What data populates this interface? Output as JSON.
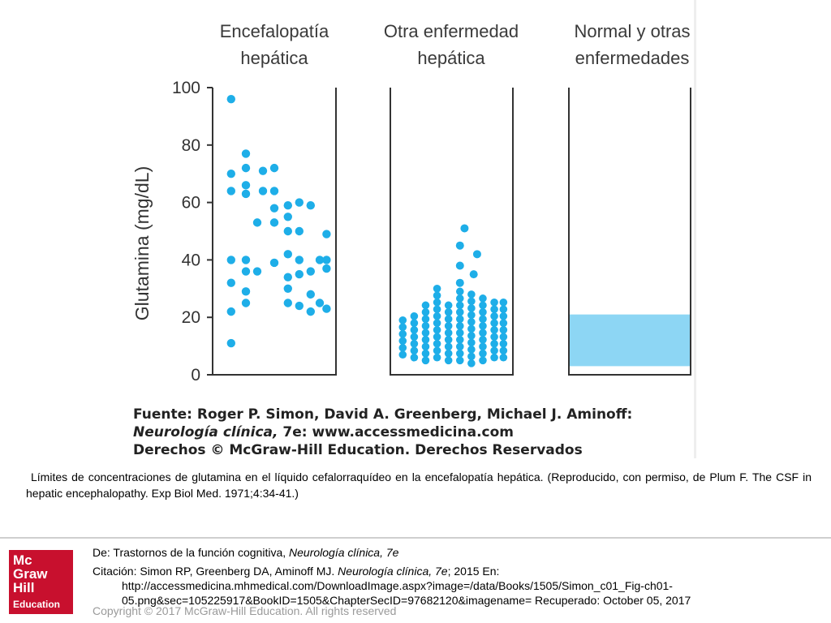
{
  "chart_data": {
    "type": "scatter",
    "ylabel": "Glutamina (mg/dL)",
    "ylim": [
      0,
      100
    ],
    "yticks": [
      0,
      20,
      40,
      60,
      80,
      100
    ],
    "colors": {
      "points": "#1eaee8",
      "band": "#8dd6f4",
      "axis": "#333333"
    },
    "panels": [
      {
        "title": [
          "Encefalopatía",
          "hepática"
        ],
        "points": [
          {
            "x": 0.12,
            "y": 96
          },
          {
            "x": 0.12,
            "y": 70
          },
          {
            "x": 0.25,
            "y": 72
          },
          {
            "x": 0.4,
            "y": 71
          },
          {
            "x": 0.5,
            "y": 72
          },
          {
            "x": 0.25,
            "y": 77
          },
          {
            "x": 0.12,
            "y": 64
          },
          {
            "x": 0.25,
            "y": 66
          },
          {
            "x": 0.25,
            "y": 63
          },
          {
            "x": 0.4,
            "y": 64
          },
          {
            "x": 0.5,
            "y": 64
          },
          {
            "x": 0.35,
            "y": 53
          },
          {
            "x": 0.5,
            "y": 53
          },
          {
            "x": 0.5,
            "y": 58
          },
          {
            "x": 0.62,
            "y": 59
          },
          {
            "x": 0.62,
            "y": 55
          },
          {
            "x": 0.62,
            "y": 50
          },
          {
            "x": 0.72,
            "y": 60
          },
          {
            "x": 0.82,
            "y": 59
          },
          {
            "x": 0.72,
            "y": 50
          },
          {
            "x": 0.96,
            "y": 49
          },
          {
            "x": 0.12,
            "y": 40
          },
          {
            "x": 0.25,
            "y": 40
          },
          {
            "x": 0.25,
            "y": 36
          },
          {
            "x": 0.35,
            "y": 36
          },
          {
            "x": 0.5,
            "y": 39
          },
          {
            "x": 0.62,
            "y": 42
          },
          {
            "x": 0.72,
            "y": 40
          },
          {
            "x": 0.62,
            "y": 34
          },
          {
            "x": 0.72,
            "y": 35
          },
          {
            "x": 0.82,
            "y": 36
          },
          {
            "x": 0.9,
            "y": 40
          },
          {
            "x": 0.96,
            "y": 37
          },
          {
            "x": 0.96,
            "y": 40
          },
          {
            "x": 0.12,
            "y": 32
          },
          {
            "x": 0.25,
            "y": 29
          },
          {
            "x": 0.62,
            "y": 30
          },
          {
            "x": 0.72,
            "y": 24
          },
          {
            "x": 0.62,
            "y": 25
          },
          {
            "x": 0.82,
            "y": 28
          },
          {
            "x": 0.9,
            "y": 25
          },
          {
            "x": 0.82,
            "y": 22
          },
          {
            "x": 0.96,
            "y": 23
          },
          {
            "x": 0.25,
            "y": 25
          },
          {
            "x": 0.12,
            "y": 22
          },
          {
            "x": 0.12,
            "y": 11
          }
        ]
      },
      {
        "title": [
          "Otra enfermedad",
          "hepática"
        ],
        "columns": [
          {
            "x": 0.08,
            "min": 7,
            "max": 19
          },
          {
            "x": 0.18,
            "min": 6,
            "max": 22
          },
          {
            "x": 0.28,
            "min": 5,
            "max": 25
          },
          {
            "x": 0.38,
            "min": 6,
            "max": 31
          },
          {
            "x": 0.48,
            "min": 5,
            "max": 25
          },
          {
            "x": 0.58,
            "min": 5,
            "max": 29
          },
          {
            "x": 0.68,
            "min": 4,
            "max": 30
          },
          {
            "x": 0.78,
            "min": 5,
            "max": 28
          },
          {
            "x": 0.88,
            "min": 6,
            "max": 27
          },
          {
            "x": 0.96,
            "min": 6,
            "max": 27
          }
        ],
        "outliers": [
          {
            "x": 0.62,
            "y": 51
          },
          {
            "x": 0.58,
            "y": 45
          },
          {
            "x": 0.73,
            "y": 42
          },
          {
            "x": 0.58,
            "y": 38
          },
          {
            "x": 0.7,
            "y": 35
          },
          {
            "x": 0.58,
            "y": 32
          }
        ]
      },
      {
        "title": [
          "Normal y otras",
          "enfermedades"
        ],
        "band": {
          "min": 3,
          "max": 21
        }
      }
    ]
  },
  "source": {
    "label": "Fuente:",
    "authors": "Roger P. Simon, David A. Greenberg, Michael J. Aminoff:",
    "book_italic": "Neurología clínica,",
    "book_rest": " 7e: www.accessmedicina.com",
    "rights": "Derechos © McGraw-Hill Education. Derechos Reservados"
  },
  "caption": "Límites de concentraciones de glutamina en el líquido cefalorraquídeo en la encefalopatía hepática. (Reproducido, con permiso, de Plum F. The CSF in hepatic encephalopathy. Exp Biol Med. 1971;4:34-41.)",
  "footer": {
    "logo_lines": [
      "Mc",
      "Graw",
      "Hill",
      "Education"
    ],
    "from_prefix": "De: Trastornos de la función cognitiva, ",
    "from_book": "Neurología clínica, 7e",
    "citation_prefix": "Citación: Simon RP, Greenberg DA, Aminoff MJ. ",
    "citation_book": "Neurología clínica, 7e",
    "citation_suffix": "; 2015 En:",
    "citation_url": "http://accessmedicina.mhmedical.com/DownloadImage.aspx?image=/data/Books/1505/Simon_c01_Fig-ch01-05.png&sec=105225917&BookID=1505&ChapterSecID=97682120&imagename= Recuperado: October 05, 2017",
    "copyright": "Copyright © 2017 McGraw-Hill Education. All rights reserved"
  }
}
